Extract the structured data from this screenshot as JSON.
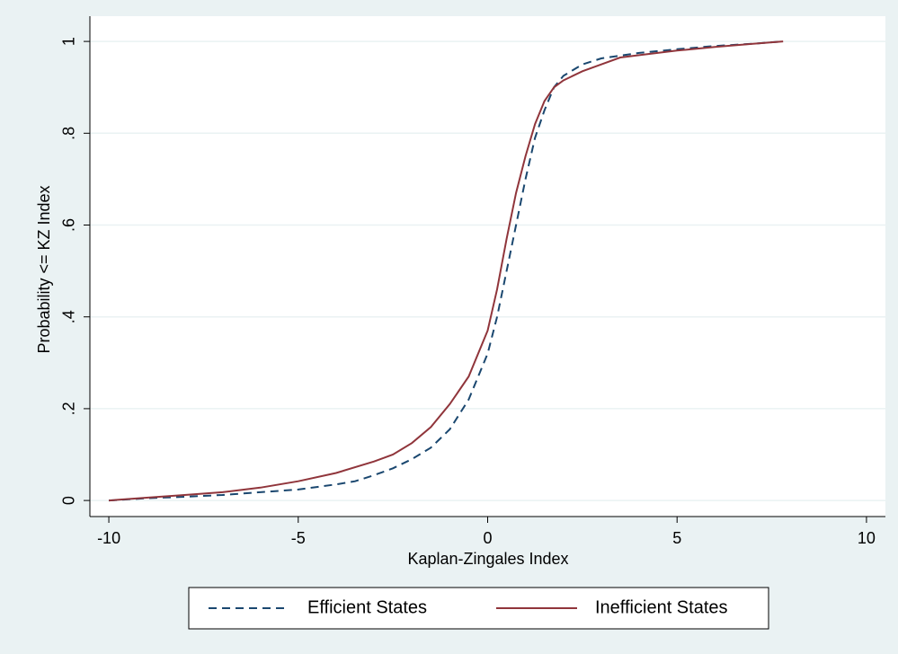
{
  "chart_data": {
    "type": "line",
    "x_label": "Kaplan-Zingales Index",
    "y_label": "Probability <= KZ Index",
    "xlim": [
      -10.5,
      10.5
    ],
    "xticks": [
      -10,
      -5,
      0,
      5,
      10
    ],
    "ylim": [
      -0.035,
      1.055
    ],
    "yticks": [
      0,
      {
        "value": 0.2,
        "label": ".2"
      },
      {
        "value": 0.4,
        "label": ".4"
      },
      {
        "value": 0.6,
        "label": ".6"
      },
      {
        "value": 0.8,
        "label": ".8"
      },
      1
    ],
    "grid": true,
    "legend": "bottom",
    "series": [
      {
        "name": "Efficient States",
        "color": "#1a476f",
        "line_style": "dashed",
        "x": [
          -10,
          -9,
          -8,
          -7,
          -6,
          -5,
          -4,
          -3.5,
          -3,
          -2.5,
          -2,
          -1.5,
          -1,
          -0.5,
          0,
          0.25,
          0.5,
          0.75,
          1,
          1.25,
          1.5,
          1.75,
          2,
          2.5,
          3,
          4,
          5,
          6,
          7,
          7.8
        ],
        "values": [
          0,
          0.005,
          0.008,
          0.012,
          0.018,
          0.024,
          0.035,
          0.042,
          0.055,
          0.07,
          0.09,
          0.115,
          0.155,
          0.22,
          0.32,
          0.4,
          0.5,
          0.6,
          0.7,
          0.79,
          0.85,
          0.9,
          0.925,
          0.95,
          0.963,
          0.975,
          0.983,
          0.99,
          0.995,
          1
        ]
      },
      {
        "name": "Inefficient States",
        "color": "#90353b",
        "line_style": "solid",
        "x": [
          -10,
          -9,
          -8,
          -7,
          -6,
          -5,
          -4,
          -3,
          -2.5,
          -2,
          -1.5,
          -1,
          -0.5,
          0,
          0.25,
          0.5,
          0.75,
          1,
          1.25,
          1.5,
          1.75,
          2,
          2.5,
          3,
          3.5,
          4,
          5,
          6,
          7,
          7.8
        ],
        "values": [
          0,
          0.006,
          0.012,
          0.018,
          0.028,
          0.042,
          0.06,
          0.085,
          0.1,
          0.125,
          0.16,
          0.21,
          0.27,
          0.37,
          0.46,
          0.57,
          0.67,
          0.75,
          0.82,
          0.87,
          0.9,
          0.915,
          0.935,
          0.95,
          0.965,
          0.97,
          0.98,
          0.988,
          0.995,
          1
        ]
      }
    ]
  }
}
